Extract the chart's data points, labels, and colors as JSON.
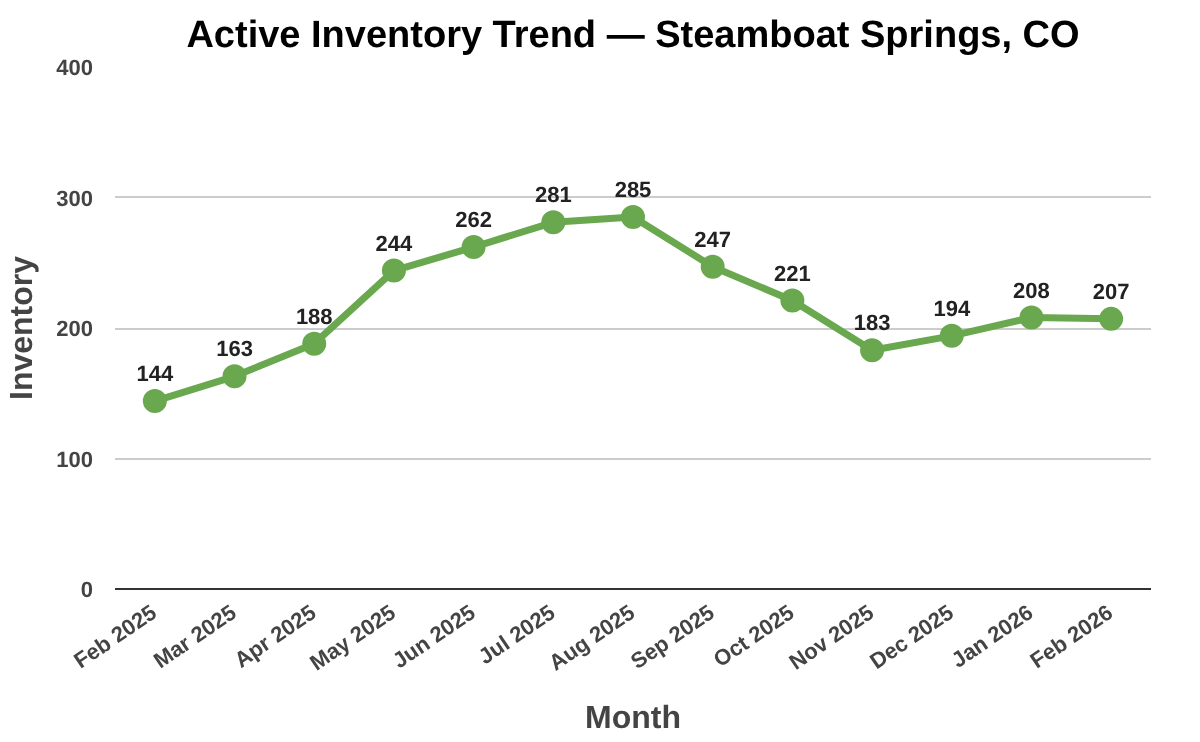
{
  "chart_data": {
    "type": "line",
    "title": "Active Inventory Trend — Steamboat Springs, CO",
    "xlabel": "Month",
    "ylabel": "Inventory",
    "categories": [
      "Feb 2025",
      "Mar 2025",
      "Apr 2025",
      "May 2025",
      "Jun 2025",
      "Jul 2025",
      "Aug 2025",
      "Sep 2025",
      "Oct 2025",
      "Nov 2025",
      "Dec 2025",
      "Jan 2026",
      "Feb 2026"
    ],
    "series": [
      {
        "color": "#6aa84f",
        "values": [
          144,
          163,
          188,
          244,
          262,
          281,
          285,
          247,
          221,
          183,
          194,
          208,
          207
        ]
      }
    ],
    "ylim": [
      0,
      400
    ],
    "yticks": [
      0,
      100,
      200,
      300,
      400
    ],
    "grid": "y",
    "marker": "circle",
    "line_style": "solid",
    "data_labels": true
  }
}
